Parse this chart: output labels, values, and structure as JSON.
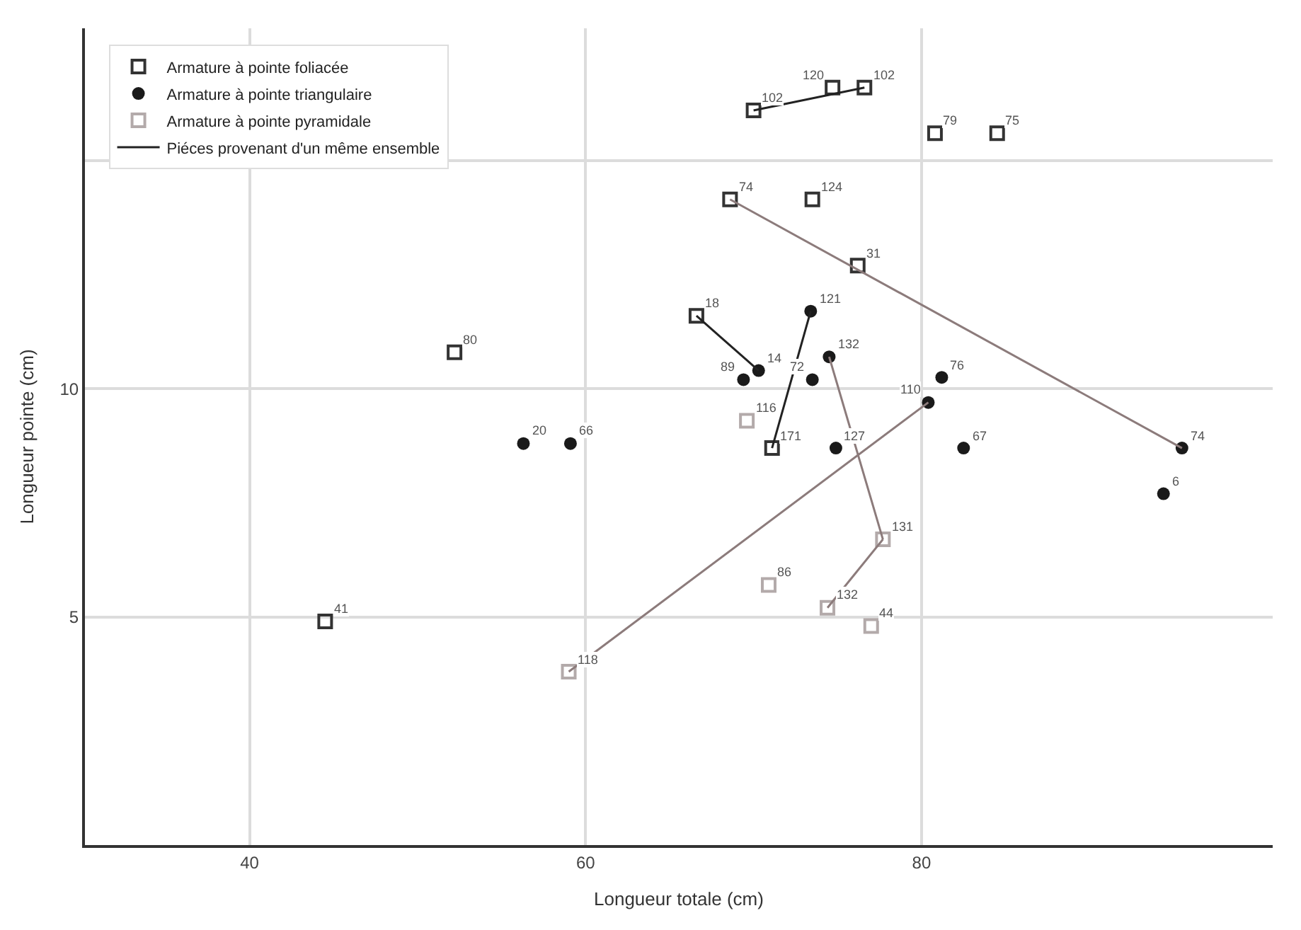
{
  "chart_data": {
    "type": "scatter",
    "xlabel": "Longueur totale (cm)",
    "ylabel": "Longueur pointe (cm)",
    "xlim": [
      30.2,
      100.9
    ],
    "ylim": [
      0,
      17.9
    ],
    "xticks": [
      40,
      60,
      80
    ],
    "yticks": [
      5,
      10,
      {
        "value": 15,
        "label": null
      }
    ],
    "grid": true,
    "legend": "top left",
    "annotations": [
      {
        "text": "102",
        "x": 70.0,
        "y": 16.1
      },
      {
        "text": "120",
        "x": 74.7,
        "y": 16.6
      },
      {
        "text": "102",
        "x": 76.6,
        "y": 16.6
      },
      {
        "text": "79",
        "x": 80.8,
        "y": 15.6
      },
      {
        "text": "75",
        "x": 84.5,
        "y": 15.6
      },
      {
        "text": "74",
        "x": 68.6,
        "y": 14.15
      },
      {
        "text": "124",
        "x": 73.5,
        "y": 14.15
      },
      {
        "text": "31",
        "x": 76.2,
        "y": 12.7
      },
      {
        "text": "18",
        "x": 66.6,
        "y": 11.6
      },
      {
        "text": "80",
        "x": 52.2,
        "y": 10.8
      },
      {
        "text": "171",
        "x": 71.1,
        "y": 8.7
      },
      {
        "text": "41",
        "x": 44.5,
        "y": 4.9
      },
      {
        "text": "121",
        "x": 73.4,
        "y": 11.7
      },
      {
        "text": "132",
        "x": 74.5,
        "y": 10.7
      },
      {
        "text": "14",
        "x": 70.3,
        "y": 10.4
      },
      {
        "text": "89",
        "x": 69.4,
        "y": 10.2
      },
      {
        "text": "72",
        "x": 73.5,
        "y": 10.2
      },
      {
        "text": "76",
        "x": 81.2,
        "y": 10.25
      },
      {
        "text": "110",
        "x": 80.4,
        "y": 9.7
      },
      {
        "text": "127",
        "x": 74.9,
        "y": 8.7
      },
      {
        "text": "67",
        "x": 82.5,
        "y": 8.7
      },
      {
        "text": "74",
        "x": 95.5,
        "y": 8.7
      },
      {
        "text": "6",
        "x": 94.4,
        "y": 7.7
      },
      {
        "text": "20",
        "x": 56.3,
        "y": 8.8
      },
      {
        "text": "66",
        "x": 59.1,
        "y": 8.8
      },
      {
        "text": "116",
        "x": 69.6,
        "y": 9.3
      },
      {
        "text": "131",
        "x": 77.7,
        "y": 6.7
      },
      {
        "text": "86",
        "x": 70.9,
        "y": 5.7
      },
      {
        "text": "132",
        "x": 74.4,
        "y": 5.2
      },
      {
        "text": "44",
        "x": 77.0,
        "y": 4.8
      },
      {
        "text": "118",
        "x": 59.0,
        "y": 3.8
      }
    ],
    "series": [
      {
        "name": "Armature à pointe foliacée",
        "color": "#333333",
        "marker": "square",
        "x": [
          70.0,
          74.7,
          76.6,
          80.8,
          84.5,
          68.6,
          73.5,
          76.2,
          66.6,
          52.2,
          71.1,
          44.5
        ],
        "values": [
          16.1,
          16.6,
          16.6,
          15.6,
          15.6,
          14.15,
          14.15,
          12.7,
          11.6,
          10.8,
          8.7,
          4.9
        ]
      },
      {
        "name": "Armature à pointe triangulaire",
        "color": "#1a1a1a",
        "marker": "circle",
        "x": [
          73.4,
          74.5,
          70.3,
          69.4,
          73.5,
          81.2,
          80.4,
          74.9,
          82.5,
          95.5,
          94.4,
          56.3,
          59.1
        ],
        "values": [
          11.7,
          10.7,
          10.4,
          10.2,
          10.2,
          10.25,
          9.7,
          8.7,
          8.7,
          8.7,
          7.7,
          8.8,
          8.8
        ]
      },
      {
        "name": "Armature à pointe pyramidale",
        "color": "#b3aaaa",
        "marker": "square",
        "x": [
          69.6,
          77.7,
          70.9,
          74.4,
          77.0,
          59.0
        ],
        "values": [
          9.3,
          6.7,
          5.7,
          5.2,
          4.8,
          3.8
        ]
      },
      {
        "name": "Piéces provenant d'un même ensemble",
        "type": "line",
        "color": "#222222",
        "x": [
          70.0,
          76.6
        ],
        "values": [
          16.1,
          16.6
        ]
      },
      {
        "type": "line",
        "color": "#8c7b7b",
        "x": [
          68.6,
          95.5
        ],
        "values": [
          14.15,
          8.7
        ]
      },
      {
        "type": "line",
        "color": "#222222",
        "x": [
          66.6,
          70.3
        ],
        "values": [
          11.6,
          10.4
        ]
      },
      {
        "type": "line",
        "color": "#222222",
        "x": [
          73.4,
          71.1
        ],
        "values": [
          11.7,
          8.7
        ]
      },
      {
        "type": "line",
        "color": "#8c7b7b",
        "x": [
          74.5,
          77.7
        ],
        "values": [
          10.7,
          6.7
        ]
      },
      {
        "type": "line",
        "color": "#8c7b7b",
        "x": [
          77.7,
          74.4
        ],
        "values": [
          6.7,
          5.2
        ]
      },
      {
        "type": "line",
        "color": "#8c7b7b",
        "x": [
          80.4,
          59.0
        ],
        "values": [
          9.7,
          3.8
        ]
      }
    ]
  }
}
